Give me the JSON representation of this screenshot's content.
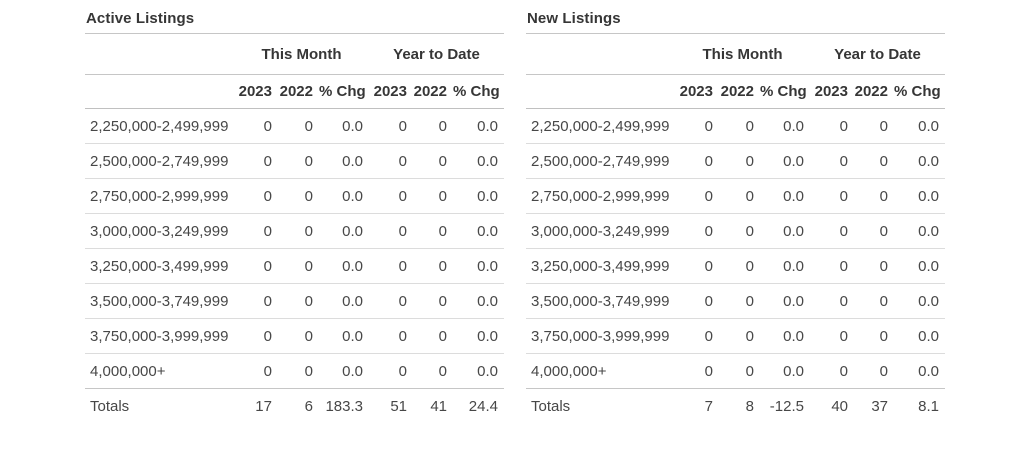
{
  "tables": [
    {
      "title": "Active Listings",
      "group_headers": [
        "This Month",
        "Year to Date"
      ],
      "sub_headers": [
        "2023",
        "2022",
        "% Chg",
        "2023",
        "2022",
        "% Chg"
      ],
      "rows": [
        {
          "label": "2,250,000-2,499,999",
          "values": [
            "0",
            "0",
            "0.0",
            "0",
            "0",
            "0.0"
          ]
        },
        {
          "label": "2,500,000-2,749,999",
          "values": [
            "0",
            "0",
            "0.0",
            "0",
            "0",
            "0.0"
          ]
        },
        {
          "label": "2,750,000-2,999,999",
          "values": [
            "0",
            "0",
            "0.0",
            "0",
            "0",
            "0.0"
          ]
        },
        {
          "label": "3,000,000-3,249,999",
          "values": [
            "0",
            "0",
            "0.0",
            "0",
            "0",
            "0.0"
          ]
        },
        {
          "label": "3,250,000-3,499,999",
          "values": [
            "0",
            "0",
            "0.0",
            "0",
            "0",
            "0.0"
          ]
        },
        {
          "label": "3,500,000-3,749,999",
          "values": [
            "0",
            "0",
            "0.0",
            "0",
            "0",
            "0.0"
          ]
        },
        {
          "label": "3,750,000-3,999,999",
          "values": [
            "0",
            "0",
            "0.0",
            "0",
            "0",
            "0.0"
          ]
        },
        {
          "label": "4,000,000+",
          "values": [
            "0",
            "0",
            "0.0",
            "0",
            "0",
            "0.0"
          ]
        }
      ],
      "totals": {
        "label": "Totals",
        "values": [
          "17",
          "6",
          "183.3",
          "51",
          "41",
          "24.4"
        ]
      }
    },
    {
      "title": "New Listings",
      "group_headers": [
        "This Month",
        "Year to Date"
      ],
      "sub_headers": [
        "2023",
        "2022",
        "% Chg",
        "2023",
        "2022",
        "% Chg"
      ],
      "rows": [
        {
          "label": "2,250,000-2,499,999",
          "values": [
            "0",
            "0",
            "0.0",
            "0",
            "0",
            "0.0"
          ]
        },
        {
          "label": "2,500,000-2,749,999",
          "values": [
            "0",
            "0",
            "0.0",
            "0",
            "0",
            "0.0"
          ]
        },
        {
          "label": "2,750,000-2,999,999",
          "values": [
            "0",
            "0",
            "0.0",
            "0",
            "0",
            "0.0"
          ]
        },
        {
          "label": "3,000,000-3,249,999",
          "values": [
            "0",
            "0",
            "0.0",
            "0",
            "0",
            "0.0"
          ]
        },
        {
          "label": "3,250,000-3,499,999",
          "values": [
            "0",
            "0",
            "0.0",
            "0",
            "0",
            "0.0"
          ]
        },
        {
          "label": "3,500,000-3,749,999",
          "values": [
            "0",
            "0",
            "0.0",
            "0",
            "0",
            "0.0"
          ]
        },
        {
          "label": "3,750,000-3,999,999",
          "values": [
            "0",
            "0",
            "0.0",
            "0",
            "0",
            "0.0"
          ]
        },
        {
          "label": "4,000,000+",
          "values": [
            "0",
            "0",
            "0.0",
            "0",
            "0",
            "0.0"
          ]
        }
      ],
      "totals": {
        "label": "Totals",
        "values": [
          "7",
          "8",
          "-12.5",
          "40",
          "37",
          "8.1"
        ]
      }
    }
  ],
  "colors": {
    "header_line": "#c6c6c6",
    "row_line": "#dcdcdc",
    "heading_text": "#363636",
    "body_text": "#474747",
    "background": "#ffffff"
  }
}
